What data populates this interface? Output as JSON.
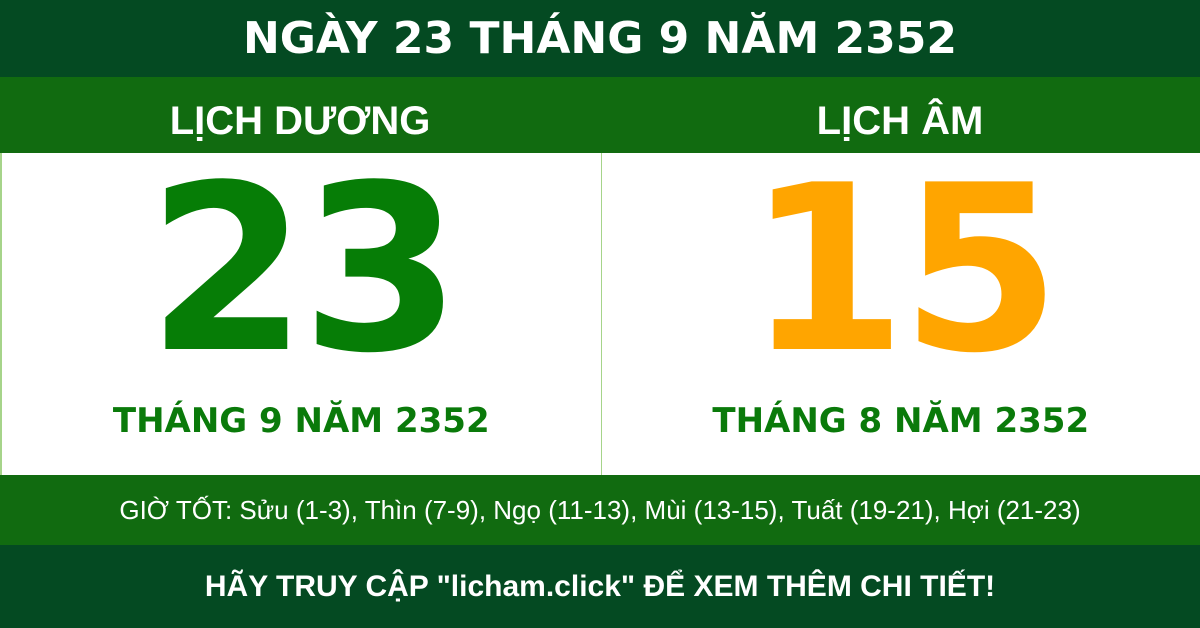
{
  "header": {
    "title": "NGÀY 23 THÁNG 9 NĂM 2352"
  },
  "solar": {
    "label": "LỊCH DƯƠNG",
    "day": "23",
    "month_year": "THÁNG 9 NĂM 2352",
    "color": "#067d06"
  },
  "lunar": {
    "label": "LỊCH ÂM",
    "day": "15",
    "month_year": "THÁNG 8 NĂM 2352",
    "color": "#ffa500"
  },
  "good_hours": "GIỜ TỐT: Sửu (1-3), Thìn (7-9), Ngọ (11-13), Mùi (13-15), Tuất (19-21), Hợi (21-23)",
  "footer": {
    "cta": "HÃY TRUY CẬP \"licham.click\" ĐỂ XEM THÊM CHI TIẾT!"
  }
}
